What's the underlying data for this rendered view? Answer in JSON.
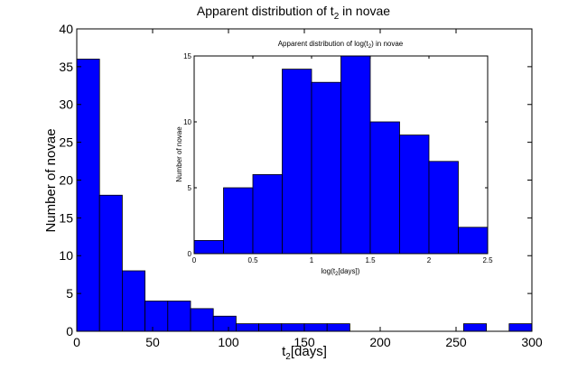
{
  "colors": {
    "bar_fill": "#0000ff",
    "bar_stroke": "#000000",
    "axis": "#000000",
    "background": "#ffffff"
  },
  "chart_data": [
    {
      "type": "bar",
      "role": "main",
      "title": {
        "text": "Apparent distribution of t",
        "subscript": "2",
        "suffix": " in novae"
      },
      "xlabel": {
        "text": "t",
        "subscript": "2",
        "suffix": "[days]"
      },
      "ylabel": "Number of novae",
      "bin_width": 15,
      "bin_left_edges": [
        0,
        15,
        30,
        45,
        60,
        75,
        90,
        105,
        120,
        135,
        150,
        165,
        180,
        195,
        210,
        225,
        240,
        255,
        270,
        285
      ],
      "values": [
        36,
        18,
        8,
        4,
        4,
        3,
        2,
        1,
        1,
        1,
        1,
        1,
        0,
        0,
        0,
        0,
        0,
        1,
        0,
        1
      ],
      "xlim": [
        0,
        300
      ],
      "ylim": [
        0,
        40
      ],
      "xticks": [
        0,
        50,
        100,
        150,
        200,
        250,
        300
      ],
      "yticks": [
        0,
        5,
        10,
        15,
        20,
        25,
        30,
        35,
        40
      ],
      "grid": false
    },
    {
      "type": "bar",
      "role": "inset",
      "title": {
        "text": "Apparent distribution of log(t",
        "subscript": "2",
        "suffix": ") in novae"
      },
      "xlabel": {
        "text": "log(t",
        "subscript": "2",
        "suffix": "[days])"
      },
      "ylabel": "Number of novae",
      "bin_width": 0.25,
      "bin_left_edges": [
        0,
        0.25,
        0.5,
        0.75,
        1.0,
        1.25,
        1.5,
        1.75,
        2.0,
        2.25
      ],
      "values": [
        1,
        5,
        6,
        14,
        13,
        15,
        10,
        9,
        7,
        2
      ],
      "xlim": [
        0,
        2.5
      ],
      "ylim": [
        0,
        15
      ],
      "xticks": [
        0,
        0.5,
        1,
        1.5,
        2,
        2.5
      ],
      "yticks": [
        0,
        5,
        10,
        15
      ],
      "grid": false
    }
  ]
}
